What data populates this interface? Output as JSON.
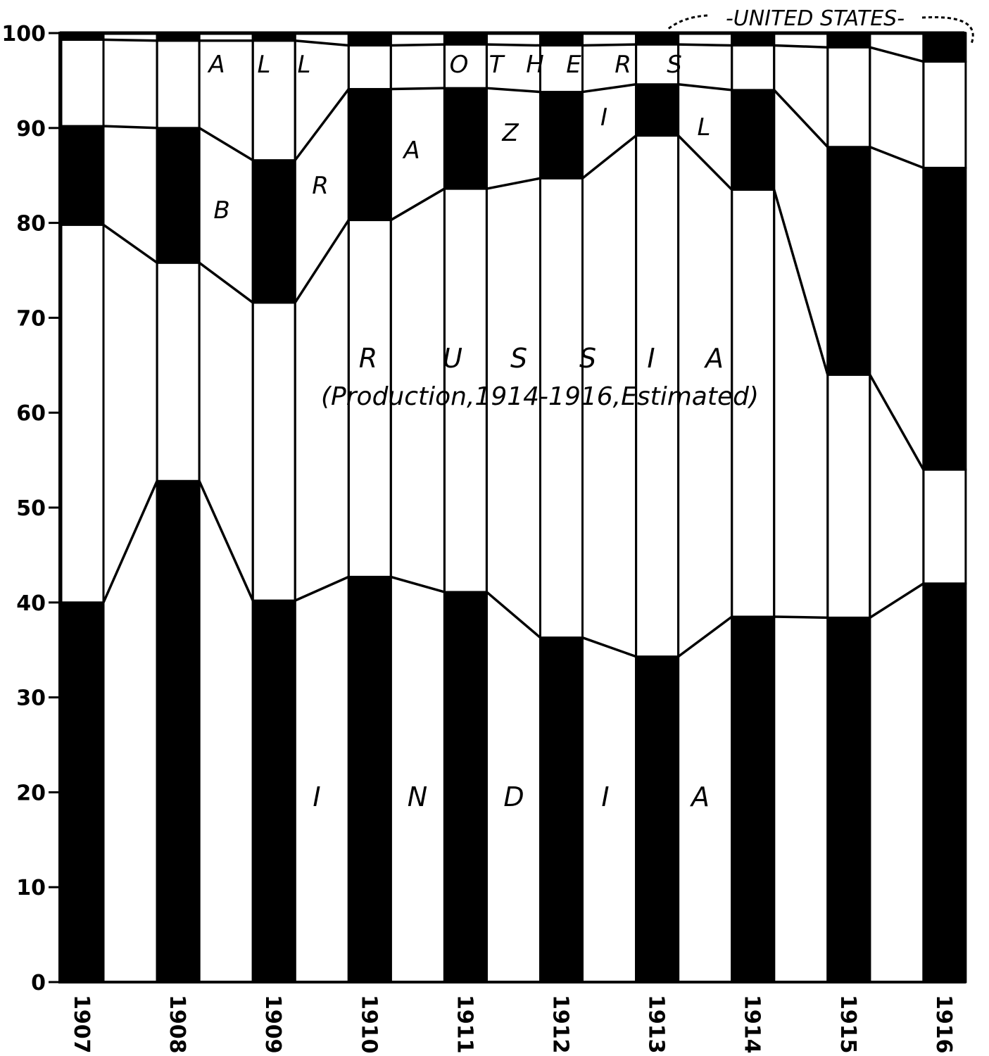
{
  "chart_data": {
    "type": "bar",
    "stacked": true,
    "percent": true,
    "categories": [
      "1907",
      "1908",
      "1909",
      "1910",
      "1911",
      "1912",
      "1913",
      "1914",
      "1915",
      "1916"
    ],
    "series": [
      {
        "name": "INDIA",
        "color": "#000000",
        "values": [
          40.0,
          52.8,
          40.2,
          42.7,
          41.1,
          36.3,
          34.3,
          38.5,
          38.4,
          42.0
        ]
      },
      {
        "name": "RUSSIA",
        "color": "#ffffff",
        "values": [
          39.8,
          23.0,
          31.4,
          37.6,
          42.5,
          48.4,
          54.9,
          45.0,
          25.6,
          12.0
        ]
      },
      {
        "name": "BRAZIL",
        "color": "#000000",
        "values": [
          10.4,
          14.2,
          15.0,
          13.8,
          10.6,
          9.1,
          5.4,
          10.5,
          24.0,
          31.8
        ]
      },
      {
        "name": "ALL OTHERS",
        "color": "#ffffff",
        "values": [
          9.1,
          9.2,
          12.6,
          4.6,
          4.6,
          4.9,
          4.2,
          4.7,
          10.5,
          11.2
        ]
      },
      {
        "name": "UNITED STATES",
        "color": "#000000",
        "values": [
          0.7,
          0.8,
          0.8,
          1.3,
          1.2,
          1.3,
          1.2,
          1.3,
          1.5,
          3.0
        ]
      }
    ],
    "annotations": {
      "russia_note": "(Production,1914-1916,Estimated)"
    },
    "ylim": [
      0,
      100
    ],
    "yticks": [
      "0",
      "10",
      "20",
      "30",
      "40",
      "50",
      "60",
      "70",
      "80",
      "90",
      "100"
    ],
    "grid": false,
    "legend": "none (labels drawn inside chart)"
  }
}
